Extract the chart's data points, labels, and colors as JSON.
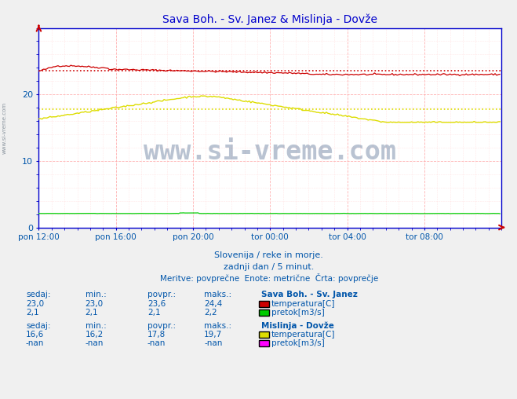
{
  "title": "Sava Boh. - Sv. Janez & Mislinja - Dovže",
  "fig_bg": "#f0f0f0",
  "plot_bg": "#ffffff",
  "xlim": [
    0,
    288
  ],
  "ylim": [
    0,
    30
  ],
  "yticks": [
    0,
    10,
    20
  ],
  "xtick_labels": [
    "pon 12:00",
    "pon 16:00",
    "pon 20:00",
    "tor 00:00",
    "tor 04:00",
    "tor 08:00"
  ],
  "xtick_positions": [
    0,
    48,
    96,
    144,
    192,
    240
  ],
  "sava_temp_color": "#cc0000",
  "sava_temp_avg": 23.6,
  "sava_temp_min": 23.0,
  "sava_temp_max": 24.4,
  "sava_temp_sedaj": 23.0,
  "sava_flow_color": "#00cc00",
  "sava_flow_avg": 2.1,
  "sava_flow_min": 2.1,
  "sava_flow_max": 2.2,
  "sava_flow_sedaj": 2.1,
  "mislinja_temp_color": "#dddd00",
  "mislinja_temp_avg": 17.8,
  "mislinja_temp_min": 16.2,
  "mislinja_temp_max": 19.7,
  "mislinja_temp_sedaj": 16.6,
  "mislinja_flow_color": "#ff00ff",
  "watermark_text": "www.si-vreme.com",
  "watermark_color": "#1a3a6a",
  "watermark_alpha": 0.3,
  "subtitle1": "Slovenija / reke in morje.",
  "subtitle2": "zadnji dan / 5 minut.",
  "subtitle3": "Meritve: povprečne  Enote: metrične  Črta: povprečje",
  "axis_color": "#0000cc",
  "title_color": "#0000cc",
  "label_color": "#0055aa",
  "grid_major_color": "#ffaaaa",
  "grid_minor_color": "#ffdddd"
}
